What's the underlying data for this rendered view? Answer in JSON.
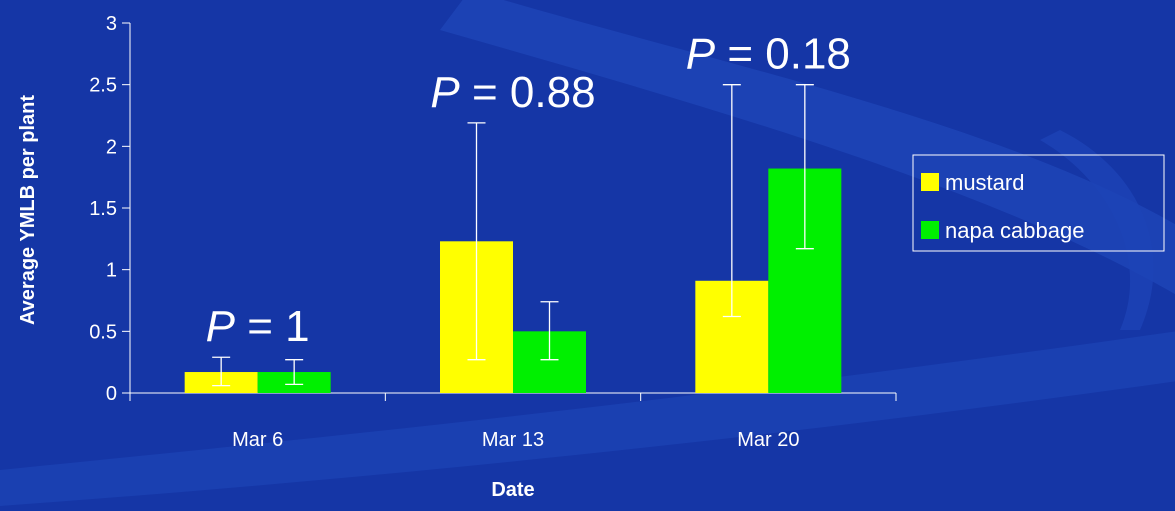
{
  "chart_data": {
    "type": "bar",
    "xlabel": "Date",
    "ylabel": "Average YMLB per plant",
    "categories": [
      "Mar 6",
      "Mar 13",
      "Mar 20"
    ],
    "ylim": [
      0,
      3
    ],
    "yticks": [
      "0",
      "0.5",
      "1",
      "1.5",
      "2",
      "2.5",
      "3"
    ],
    "series": [
      {
        "name": "mustard",
        "color": "#ffff00",
        "values": [
          0.17,
          1.23,
          0.91
        ],
        "error_low": [
          0.06,
          0.27,
          0.62
        ],
        "error_high": [
          0.29,
          2.19,
          2.5
        ]
      },
      {
        "name": "napa cabbage",
        "color": "#00f000",
        "values": [
          0.17,
          0.5,
          1.82
        ],
        "error_low": [
          0.07,
          0.27,
          1.17
        ],
        "error_high": [
          0.27,
          0.74,
          2.5
        ]
      }
    ],
    "annotations": [
      {
        "p_label": "P",
        "p_value": "= 1",
        "category": "Mar 6"
      },
      {
        "p_label": "P",
        "p_value": "= 0.88",
        "category": "Mar 13"
      },
      {
        "p_label": "P",
        "p_value": "= 0.18",
        "category": "Mar 20"
      }
    ],
    "legend_position": "right",
    "grid": false,
    "background": "#1536a6",
    "swoosh_color": "#1d44b6"
  }
}
